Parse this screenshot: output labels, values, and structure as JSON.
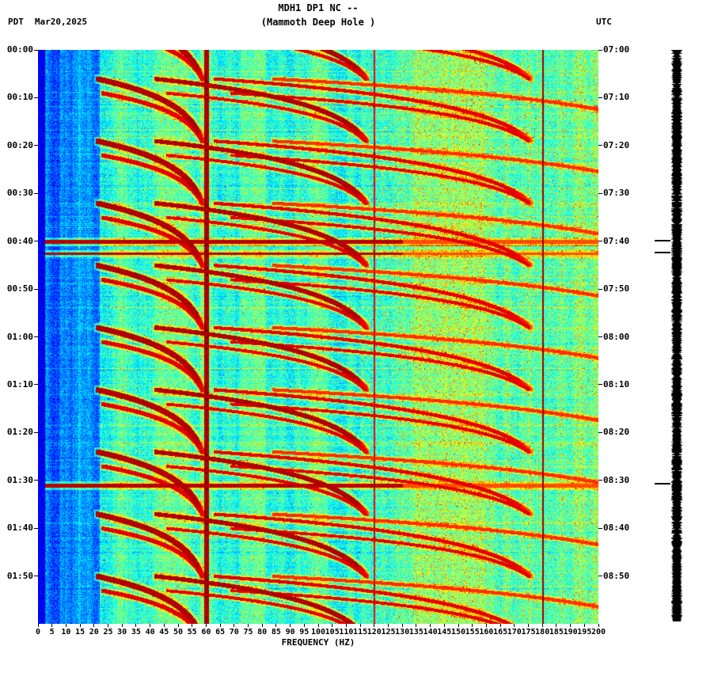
{
  "header": {
    "timezone_left": "PDT",
    "date": "Mar20,2025",
    "title": "MDH1 DP1 NC --",
    "subtitle": "(Mammoth Deep Hole )",
    "timezone_right": "UTC"
  },
  "chart_data": {
    "type": "heatmap",
    "subtype": "spectrogram",
    "title": "MDH1 DP1 NC -- (Mammoth Deep Hole )",
    "xlabel": "FREQUENCY (HZ)",
    "x_range_hz": [
      0,
      200
    ],
    "x_tick_step_hz": 5,
    "x_tick_labels": [
      "0",
      "5",
      "10",
      "15",
      "20",
      "25",
      "30",
      "35",
      "40",
      "45",
      "50",
      "55",
      "60",
      "65",
      "70",
      "75",
      "80",
      "85",
      "90",
      "95",
      "100",
      "105",
      "110",
      "115",
      "120",
      "125",
      "130",
      "135",
      "140",
      "145",
      "150",
      "155",
      "160",
      "165",
      "170",
      "175",
      "180",
      "185",
      "190",
      "195",
      "200"
    ],
    "time_axis": {
      "left_timezone": "PDT",
      "right_timezone": "UTC",
      "duration_minutes": 120,
      "tick_interval_minutes": 10,
      "left_tick_labels": [
        "00:00",
        "00:10",
        "00:20",
        "00:30",
        "00:40",
        "00:50",
        "01:00",
        "01:10",
        "01:20",
        "01:30",
        "01:40",
        "01:50"
      ],
      "right_tick_labels": [
        "07:00",
        "07:10",
        "07:20",
        "07:30",
        "07:40",
        "07:50",
        "08:00",
        "08:10",
        "08:20",
        "08:30",
        "08:40",
        "08:50"
      ]
    },
    "features": {
      "powerline_lines": [
        {
          "hz": 60,
          "strength": "strong"
        },
        {
          "hz": 120,
          "strength": "weak"
        },
        {
          "hz": 180,
          "strength": "weak-dark"
        }
      ],
      "broadband_event_minutes_from_start": [
        40,
        42.5,
        91
      ],
      "repeating_glide_cycle_minutes": 13,
      "glide_fundamental_hz": [
        21,
        62
      ],
      "background_low_freq_band_hz": [
        0,
        22
      ],
      "colormap_stops": [
        "#000080",
        "#0000ff",
        "#00aaff",
        "#00eedd",
        "#88ff66",
        "#ffff00",
        "#ff8800",
        "#dd0000",
        "#800000"
      ]
    }
  },
  "side_strip": {
    "type": "seismogram-amplitude",
    "color": "#000000",
    "tick_marks_minutes": [
      40,
      42.5,
      91
    ]
  }
}
